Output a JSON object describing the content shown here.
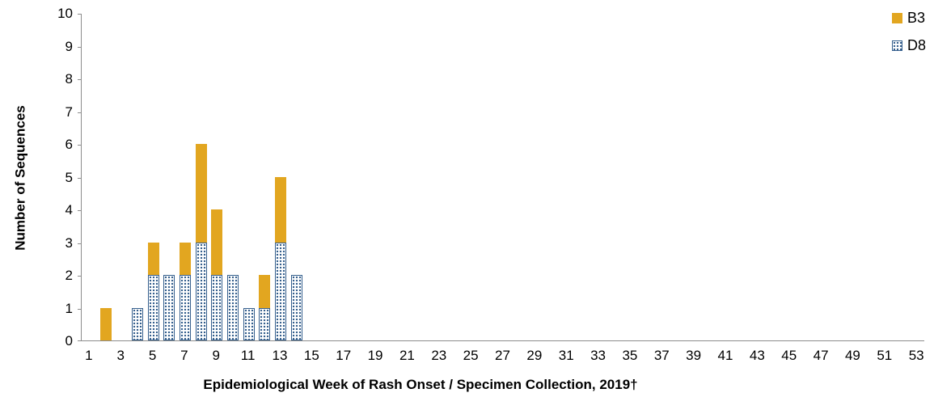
{
  "chart_data": {
    "type": "bar",
    "stacked": true,
    "title": "",
    "xlabel": "Epidemiological Week of Rash Onset / Specimen Collection, 2019†",
    "ylabel": "Number of Sequences",
    "grid": false,
    "x_axis": {
      "min": 1,
      "max": 53,
      "tick_labels": [
        "1",
        "3",
        "5",
        "7",
        "9",
        "11",
        "13",
        "15",
        "17",
        "19",
        "21",
        "23",
        "25",
        "27",
        "29",
        "31",
        "33",
        "35",
        "37",
        "39",
        "41",
        "43",
        "45",
        "47",
        "49",
        "51",
        "53"
      ]
    },
    "y_axis": {
      "min": 0,
      "max": 10,
      "tick_labels": [
        "0",
        "1",
        "2",
        "3",
        "4",
        "5",
        "6",
        "7",
        "8",
        "9",
        "10"
      ]
    },
    "legend": {
      "position": "top-right",
      "items": [
        {
          "name": "B3",
          "color": "#E2A620",
          "pattern": "solid"
        },
        {
          "name": "D8",
          "color": "#355F8D",
          "pattern": "dots"
        }
      ]
    },
    "series_order_bottom_to_top": [
      "D8",
      "B3"
    ],
    "bars": [
      {
        "week": 2,
        "D8": 0,
        "B3": 1
      },
      {
        "week": 4,
        "D8": 1,
        "B3": 0
      },
      {
        "week": 5,
        "D8": 2,
        "B3": 1
      },
      {
        "week": 6,
        "D8": 2,
        "B3": 0
      },
      {
        "week": 7,
        "D8": 2,
        "B3": 1
      },
      {
        "week": 8,
        "D8": 3,
        "B3": 3
      },
      {
        "week": 9,
        "D8": 2,
        "B3": 2
      },
      {
        "week": 10,
        "D8": 2,
        "B3": 0
      },
      {
        "week": 11,
        "D8": 1,
        "B3": 0
      },
      {
        "week": 12,
        "D8": 1,
        "B3": 1
      },
      {
        "week": 13,
        "D8": 3,
        "B3": 2
      },
      {
        "week": 14,
        "D8": 2,
        "B3": 0
      }
    ]
  }
}
